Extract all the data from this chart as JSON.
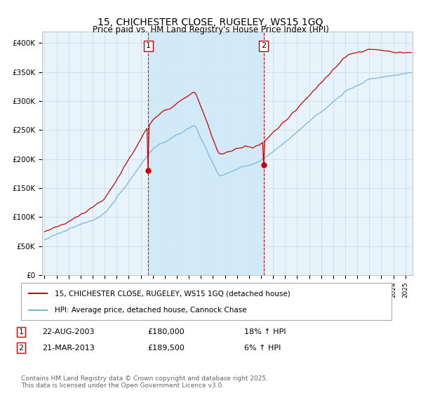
{
  "title": "15, CHICHESTER CLOSE, RUGELEY, WS15 1GQ",
  "subtitle": "Price paid vs. HM Land Registry's House Price Index (HPI)",
  "ytick_labels": [
    "£0",
    "£50K",
    "£100K",
    "£150K",
    "£200K",
    "£250K",
    "£300K",
    "£350K",
    "£400K"
  ],
  "yticks": [
    0,
    50000,
    100000,
    150000,
    200000,
    250000,
    300000,
    350000,
    400000
  ],
  "ylim": [
    0,
    420000
  ],
  "sale1_x": 2003.625,
  "sale1_price": 180000,
  "sale2_x": 2013.208,
  "sale2_price": 189500,
  "hpi_color": "#7ab4d8",
  "price_color": "#cc0000",
  "sale_line_color": "#cc0000",
  "sale_box_color": "#cc0000",
  "shade_color": "#d0e8f8",
  "bg_color": "#e8f4fc",
  "grid_color": "#c8d8e8",
  "legend_line1": "15, CHICHESTER CLOSE, RUGELEY, WS15 1GQ (detached house)",
  "legend_line2": "HPI: Average price, detached house, Cannock Chase",
  "sale1_note_date": "22-AUG-2003",
  "sale1_note_price": "£180,000",
  "sale1_note_hpi": "18% ↑ HPI",
  "sale2_note_date": "21-MAR-2013",
  "sale2_note_price": "£189,500",
  "sale2_note_hpi": "6% ↑ HPI",
  "footer": "Contains HM Land Registry data © Crown copyright and database right 2025.\nThis data is licensed under the Open Government Licence v3.0.",
  "x_start_year": 1995,
  "x_end_year": 2025
}
